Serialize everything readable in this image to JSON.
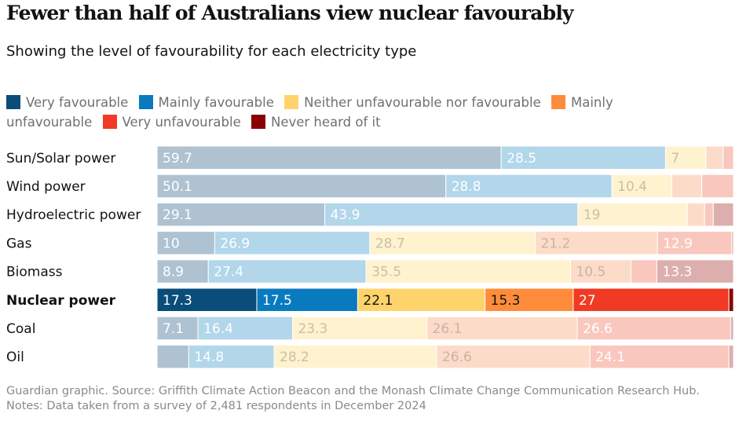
{
  "title": "Fewer than half of Australians view nuclear favourably",
  "subtitle": "Showing the level of favourability for each electricity type",
  "legend": [
    {
      "label": "Very favourable",
      "color": "#0a4d7a"
    },
    {
      "label": "Mainly favourable",
      "color": "#0a7abf"
    },
    {
      "label": "Neither unfavourable nor favourable",
      "color": "#ffd36b"
    },
    {
      "label": "Mainly unfavourable",
      "color": "#ff8c3a"
    },
    {
      "label": "Very unfavourable",
      "color": "#f03a24"
    },
    {
      "label": "Never heard of it",
      "color": "#8a0000"
    }
  ],
  "source": "Guardian graphic. Source: Griffith Climate Action Beacon and the Monash Climate Change Communication Research Hub. Notes: Data taken from a survey of 2,481 respondents in December 2024",
  "chart_data": {
    "type": "bar",
    "stacked": true,
    "orientation": "horizontal",
    "highlight": "Nuclear power",
    "categories": [
      "Sun/Solar power",
      "Wind power",
      "Hydroelectric power",
      "Gas",
      "Biomass",
      "Nuclear power",
      "Coal",
      "Oil"
    ],
    "series": [
      {
        "name": "Very favourable",
        "values": [
          59.7,
          50.1,
          29.1,
          10,
          8.9,
          17.3,
          7.1,
          5.5
        ]
      },
      {
        "name": "Mainly favourable",
        "values": [
          28.5,
          28.8,
          43.9,
          26.9,
          27.4,
          17.5,
          16.4,
          14.8
        ]
      },
      {
        "name": "Neither unfavourable nor favourable",
        "values": [
          7,
          10.4,
          19,
          28.7,
          35.5,
          22.1,
          23.3,
          28.2
        ]
      },
      {
        "name": "Mainly unfavourable",
        "values": [
          3,
          5.2,
          3,
          21.2,
          10.5,
          15.3,
          26.1,
          26.6
        ]
      },
      {
        "name": "Very unfavourable",
        "values": [
          1.8,
          5.5,
          1.5,
          12.9,
          4.5,
          27,
          26.6,
          24.1
        ]
      },
      {
        "name": "Never heard of it",
        "values": [
          0,
          0,
          3.5,
          0.3,
          13.3,
          0.8,
          0.5,
          0.8
        ]
      }
    ],
    "label_min": 6
  }
}
